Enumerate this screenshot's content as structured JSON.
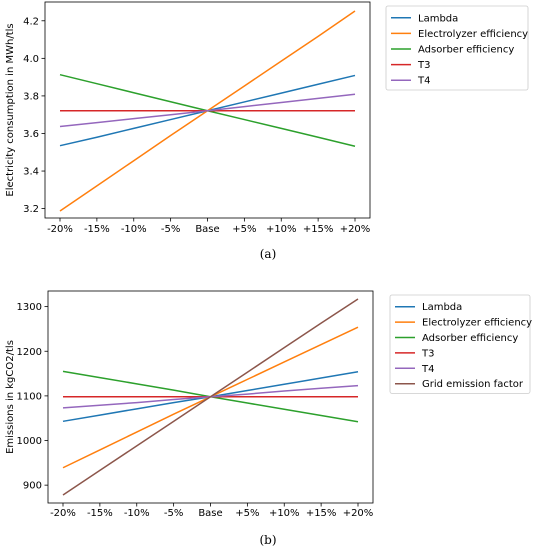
{
  "chart_data": [
    {
      "type": "line",
      "categories": [
        "-20%",
        "-15%",
        "-10%",
        "-5%",
        "Base",
        "+5%",
        "+10%",
        "+15%",
        "+20%"
      ],
      "ylabel": "Electricity consumption in MWh/tls",
      "ylim": [
        3.15,
        4.3
      ],
      "yticks": [
        "3.2",
        "3.4",
        "3.6",
        "3.8",
        "4.0",
        "4.2"
      ],
      "ytick_values": [
        3.2,
        3.4,
        3.6,
        3.8,
        4.0,
        4.2
      ],
      "legend_position": "outside-right",
      "caption": "(a)",
      "series": [
        {
          "name": "Lambda",
          "color": "#1f77b4",
          "values": [
            3.535,
            3.58,
            3.627,
            3.674,
            3.721,
            3.768,
            3.815,
            3.862,
            3.909
          ]
        },
        {
          "name": "Electrolyzer efficiency",
          "color": "#ff7f0e",
          "values": [
            3.187,
            3.321,
            3.455,
            3.589,
            3.721,
            3.853,
            3.985,
            4.117,
            4.252
          ]
        },
        {
          "name": "Adsorber efficiency",
          "color": "#2ca02c",
          "values": [
            3.913,
            3.865,
            3.817,
            3.769,
            3.721,
            3.674,
            3.627,
            3.58,
            3.532
          ]
        },
        {
          "name": "T3",
          "color": "#d62728",
          "values": [
            3.721,
            3.721,
            3.721,
            3.721,
            3.721,
            3.721,
            3.721,
            3.721,
            3.721
          ]
        },
        {
          "name": "T4",
          "color": "#9467bd",
          "values": [
            3.637,
            3.658,
            3.679,
            3.7,
            3.721,
            3.743,
            3.765,
            3.787,
            3.809
          ]
        }
      ]
    },
    {
      "type": "line",
      "categories": [
        "-20%",
        "-15%",
        "-10%",
        "-5%",
        "Base",
        "+5%",
        "+10%",
        "+15%",
        "+20%"
      ],
      "ylabel": "Emissions in kgCO2/tls",
      "ylim": [
        860,
        1335
      ],
      "yticks": [
        "900",
        "1000",
        "1100",
        "1200",
        "1300"
      ],
      "ytick_values": [
        900,
        1000,
        1100,
        1200,
        1300
      ],
      "legend_position": "outside-right",
      "caption": "(b)",
      "series": [
        {
          "name": "Lambda",
          "color": "#1f77b4",
          "values": [
            1043,
            1057,
            1071,
            1085,
            1098,
            1112,
            1126,
            1140,
            1154
          ]
        },
        {
          "name": "Electrolyzer efficiency",
          "color": "#ff7f0e",
          "values": [
            939,
            979,
            1019,
            1059,
            1098,
            1137,
            1176,
            1215,
            1254
          ]
        },
        {
          "name": "Adsorber efficiency",
          "color": "#2ca02c",
          "values": [
            1155,
            1141,
            1127,
            1113,
            1098,
            1084,
            1070,
            1056,
            1042
          ]
        },
        {
          "name": "T3",
          "color": "#d62728",
          "values": [
            1098,
            1098,
            1098,
            1098,
            1098,
            1098,
            1098,
            1098,
            1098
          ]
        },
        {
          "name": "T4",
          "color": "#9467bd",
          "values": [
            1073,
            1079,
            1085,
            1092,
            1098,
            1104,
            1111,
            1117,
            1123
          ]
        },
        {
          "name": "Grid emission factor",
          "color": "#8c564b",
          "values": [
            878,
            933,
            988,
            1043,
            1098,
            1153,
            1208,
            1263,
            1317
          ]
        }
      ]
    }
  ]
}
